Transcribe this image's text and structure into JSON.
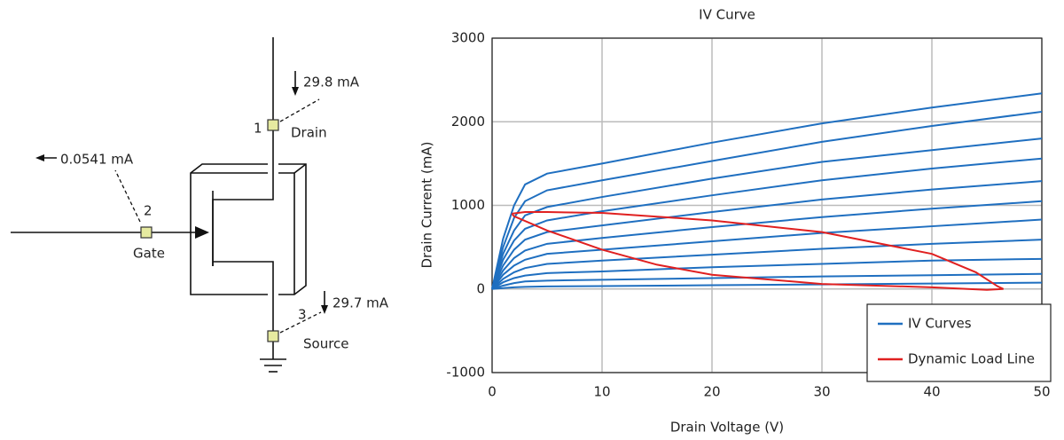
{
  "diagram": {
    "drain_current": "29.8 mA",
    "gate_current": "0.0541 mA",
    "source_current": "29.7 mA",
    "pins": [
      {
        "number": "1",
        "label": "Drain"
      },
      {
        "number": "2",
        "label": "Gate"
      },
      {
        "number": "3",
        "label": "Source"
      }
    ]
  },
  "chart_data": {
    "type": "line",
    "title": "IV Curve",
    "x_label": "Drain Voltage (V)",
    "y_label": "Drain Current (mA)",
    "xlim": [
      0,
      50
    ],
    "ylim": [
      -1000,
      3000
    ],
    "xticks": [
      0,
      10,
      20,
      30,
      40,
      50
    ],
    "yticks": [
      -1000,
      0,
      1000,
      2000,
      3000
    ],
    "grid": true,
    "legend": "lower right",
    "series": [
      {
        "name": "IV Curves",
        "color": "#1f6fc0",
        "x": [
          0,
          1,
          2,
          3,
          5,
          10,
          20,
          30,
          40,
          50
        ],
        "curves": [
          {
            "values": [
              0,
              600,
              1000,
              1250,
              1380,
              1500,
              1750,
              1980,
              2170,
              2340
            ]
          },
          {
            "values": [
              0,
              500,
              850,
              1050,
              1180,
              1300,
              1530,
              1760,
              1950,
              2120
            ]
          },
          {
            "values": [
              0,
              420,
              700,
              880,
              980,
              1100,
              1320,
              1520,
              1660,
              1800
            ]
          },
          {
            "values": [
              0,
              350,
              580,
              720,
              820,
              930,
              1120,
              1300,
              1440,
              1560
            ]
          },
          {
            "values": [
              0,
              280,
              470,
              590,
              680,
              760,
              920,
              1070,
              1190,
              1290
            ]
          },
          {
            "values": [
              0,
              220,
              370,
              460,
              540,
              610,
              740,
              860,
              960,
              1050
            ]
          },
          {
            "values": [
              0,
              170,
              280,
              350,
              420,
              470,
              570,
              670,
              750,
              830
            ]
          },
          {
            "values": [
              0,
              120,
              200,
              250,
              300,
              340,
              410,
              480,
              540,
              590
            ]
          },
          {
            "values": [
              0,
              80,
              130,
              160,
              190,
              210,
              260,
              300,
              340,
              360
            ]
          },
          {
            "values": [
              0,
              40,
              70,
              90,
              100,
              110,
              130,
              150,
              165,
              180
            ]
          },
          {
            "values": [
              0,
              10,
              20,
              25,
              30,
              35,
              45,
              55,
              65,
              75
            ]
          }
        ]
      },
      {
        "name": "Dynamic Load Line",
        "color": "#e02020",
        "x": [
          1.8,
          3,
          5,
          10,
          20,
          30,
          40,
          44,
          46,
          46.5,
          45,
          40,
          30,
          20,
          15,
          10,
          5,
          2,
          1.8
        ],
        "values": [
          900,
          920,
          920,
          910,
          820,
          680,
          420,
          200,
          30,
          0,
          -10,
          20,
          60,
          170,
          290,
          470,
          700,
          870,
          900
        ]
      }
    ]
  }
}
